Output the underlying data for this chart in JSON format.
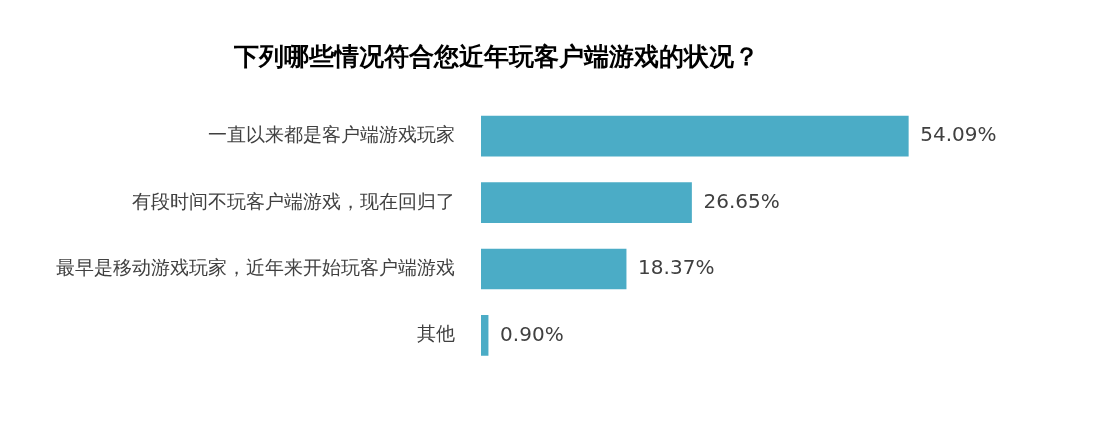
{
  "chart_data": {
    "type": "bar",
    "orientation": "horizontal",
    "title": "下列哪些情况符合您近年玩客户端游戏的状况？",
    "categories": [
      "一直以来都是客户端游戏玩家",
      "有段时间不玩客户端游戏，现在回归了",
      "最早是移动游戏玩家，近年来开始玩客户端游戏",
      "其他"
    ],
    "values": [
      54.09,
      26.65,
      18.37,
      0.9
    ],
    "value_labels": [
      "54.09%",
      "26.65%",
      "18.37%",
      "0.90%"
    ],
    "color": "#4bacc6",
    "legend": false,
    "tick_labels": "y"
  }
}
